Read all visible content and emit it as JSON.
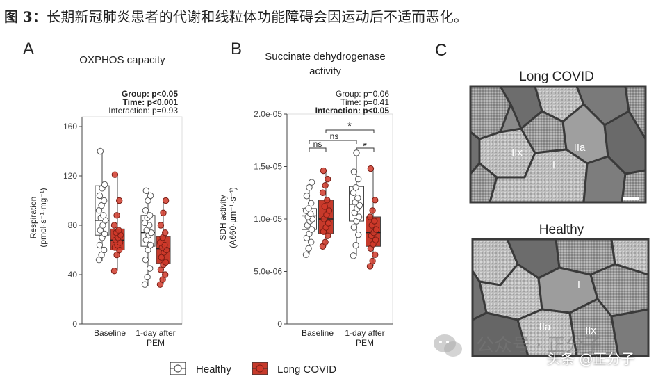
{
  "caption": {
    "fig": "图",
    "num": "3",
    "sep": "：",
    "text": "长期新冠肺炎患者的代谢和线粒体功能障碍会因运动后不适而恶化。"
  },
  "panelA": {
    "letter": "A",
    "title": "OXPHOS capacity",
    "stats": [
      "Group: p<0.05",
      "Time: p<0.001",
      "Interaction: p=0.93"
    ],
    "stats_bold": [
      true,
      true,
      false
    ],
    "ylabel_line1": "Respiration",
    "ylabel_line2": "(pmol·s⁻¹·mg⁻¹)",
    "ticks": [
      "0",
      "40",
      "80",
      "120",
      "160"
    ],
    "xcat": [
      "Baseline",
      "1-day after",
      "PEM"
    ]
  },
  "panelB": {
    "letter": "B",
    "title_line1": "Succinate dehydrogenase",
    "title_line2": "activity",
    "stats": [
      "Group: p=0.06",
      "Time: p=0.41",
      "Interaction: p<0.05"
    ],
    "stats_bold": [
      false,
      false,
      true
    ],
    "ylabel_line1": "SDH activity",
    "ylabel_line2": "(A660·µm⁻¹·s⁻¹)",
    "ticks": [
      "0",
      "5.0e-06",
      "1.0e-05",
      "1.5e-05",
      "2.0e-05"
    ],
    "xcat": [
      "Baseline",
      "1-day after",
      "PEM"
    ],
    "sig": {
      "ns_left": "ns",
      "ns_top": "ns",
      "star_top": "*",
      "star_right": "*"
    }
  },
  "panelC": {
    "letter": "C",
    "top_title": "Long COVID",
    "bottom_title": "Healthy",
    "top_labels": [
      "IIx",
      "IIa",
      "I"
    ],
    "bottom_labels": [
      "I",
      "IIa",
      "IIx"
    ]
  },
  "legend": {
    "healthy": "Healthy",
    "long_covid": "Long COVID"
  },
  "watermark": {
    "line1": "公众号 · 正分子",
    "line2": "头条 @正分子"
  },
  "colors": {
    "healthy_fill": "#ffffff",
    "healthy_stroke": "#555555",
    "covid_fill": "#d0392a",
    "covid_box": "#c63a2b"
  },
  "chart_data": [
    {
      "type": "box",
      "title": "OXPHOS capacity",
      "ylabel": "Respiration (pmol·s⁻¹·mg⁻¹)",
      "ylim": [
        0,
        160
      ],
      "categories": [
        "Baseline",
        "1-day after PEM"
      ],
      "series": [
        {
          "name": "Healthy",
          "box": [
            [
              72,
              84,
              112
            ],
            [
              63,
              74,
              88
            ]
          ],
          "whisker": [
            [
              51,
              140
            ],
            [
              31,
              108
            ]
          ],
          "points": [
            [
              52,
              56,
              60,
              64,
              70,
              73,
              76,
              80,
              84,
              86,
              88,
              92,
              96,
              100,
              104,
              110,
              113,
              140
            ],
            [
              32,
              38,
              45,
              52,
              60,
              64,
              68,
              72,
              74,
              76,
              80,
              82,
              86,
              88,
              92,
              100,
              104,
              108
            ]
          ]
        },
        {
          "name": "Long COVID",
          "box": [
            [
              60,
              68,
              77
            ],
            [
              49,
              61,
              71
            ]
          ],
          "whisker": [
            [
              43,
              121
            ],
            [
              32,
              100
            ]
          ],
          "points": [
            [
              43,
              56,
              60,
              62,
              64,
              66,
              68,
              70,
              72,
              74,
              76,
              80,
              88,
              100,
              121
            ],
            [
              32,
              36,
              40,
              44,
              48,
              50,
              54,
              58,
              60,
              62,
              64,
              66,
              70,
              74,
              80,
              90,
              100
            ]
          ]
        }
      ]
    },
    {
      "type": "box",
      "title": "Succinate dehydrogenase activity",
      "ylabel": "SDH activity (A660·µm⁻¹·s⁻¹)",
      "ylim": [
        0,
        2e-05
      ],
      "categories": [
        "Baseline",
        "1-day after PEM"
      ],
      "series": [
        {
          "name": "Healthy",
          "box": [
            [
              9e-06,
              1.03e-05,
              1.1e-05
            ],
            [
              9.8e-06,
              1.14e-05,
              1.31e-05
            ]
          ],
          "whisker": [
            [
              6.6e-06,
              1.35e-05
            ],
            [
              6.5e-06,
              1.63e-05
            ]
          ],
          "points": [
            [
              6.6e-06,
              7.2e-06,
              7.8e-06,
              8.2e-06,
              8.6e-06,
              9e-06,
              9.4e-06,
              9.8e-06,
              1e-05,
              1.02e-05,
              1.05e-05,
              1.08e-05,
              1.1e-05,
              1.15e-05,
              1.22e-05,
              1.3e-05,
              1.35e-05
            ],
            [
              6.5e-06,
              7.5e-06,
              8.5e-06,
              9.2e-06,
              9.8e-06,
              1.02e-05,
              1.06e-05,
              1.1e-05,
              1.13e-05,
              1.16e-05,
              1.2e-05,
              1.25e-05,
              1.3e-05,
              1.38e-05,
              1.45e-05,
              1.63e-05
            ]
          ]
        },
        {
          "name": "Long COVID",
          "box": [
            [
              8.6e-06,
              1e-05,
              1.18e-05
            ],
            [
              7.4e-06,
              8.7e-06,
              1.02e-05
            ]
          ],
          "whisker": [
            [
              7.4e-06,
              1.46e-05
            ],
            [
              5.5e-06,
              1.48e-05
            ]
          ],
          "points": [
            [
              7.4e-06,
              7.8e-06,
              8.4e-06,
              8.8e-06,
              9.2e-06,
              9.6e-06,
              1e-05,
              1.04e-05,
              1.08e-05,
              1.12e-05,
              1.18e-05,
              1.25e-05,
              1.32e-05,
              1.38e-05,
              1.46e-05
            ],
            [
              5.5e-06,
              6e-06,
              6.6e-06,
              7.2e-06,
              7.6e-06,
              8e-06,
              8.4e-06,
              8.7e-06,
              9e-06,
              9.4e-06,
              9.8e-06,
              1.02e-05,
              1.08e-05,
              1.18e-05,
              1.48e-05
            ]
          ]
        }
      ]
    }
  ]
}
